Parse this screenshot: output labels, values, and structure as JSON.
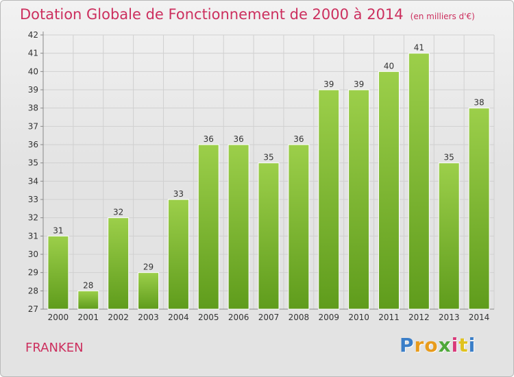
{
  "title": "Dotation Globale de Fonctionnement de 2000 à 2014",
  "subtitle": "(en milliers d'€)",
  "place": "FRANKEN",
  "logo": {
    "text": "Proxiti",
    "letter_colors": [
      "#3a7ec8",
      "#e89b1c",
      "#e89b1c",
      "#4fa83a",
      "#d93a7a",
      "#e0c21f",
      "#3a7ec8"
    ]
  },
  "chart_data": {
    "type": "bar",
    "categories": [
      "2000",
      "2001",
      "2002",
      "2003",
      "2004",
      "2005",
      "2006",
      "2007",
      "2008",
      "2009",
      "2010",
      "2011",
      "2012",
      "2013",
      "2014"
    ],
    "values": [
      31,
      28,
      32,
      29,
      33,
      36,
      36,
      35,
      36,
      39,
      39,
      40,
      41,
      35,
      38
    ],
    "ylim": [
      27,
      42
    ],
    "yticks": [
      27,
      28,
      29,
      30,
      31,
      32,
      33,
      34,
      35,
      36,
      37,
      38,
      39,
      40,
      41,
      42
    ],
    "grid": true,
    "bar_color": "#7cbb2d"
  }
}
